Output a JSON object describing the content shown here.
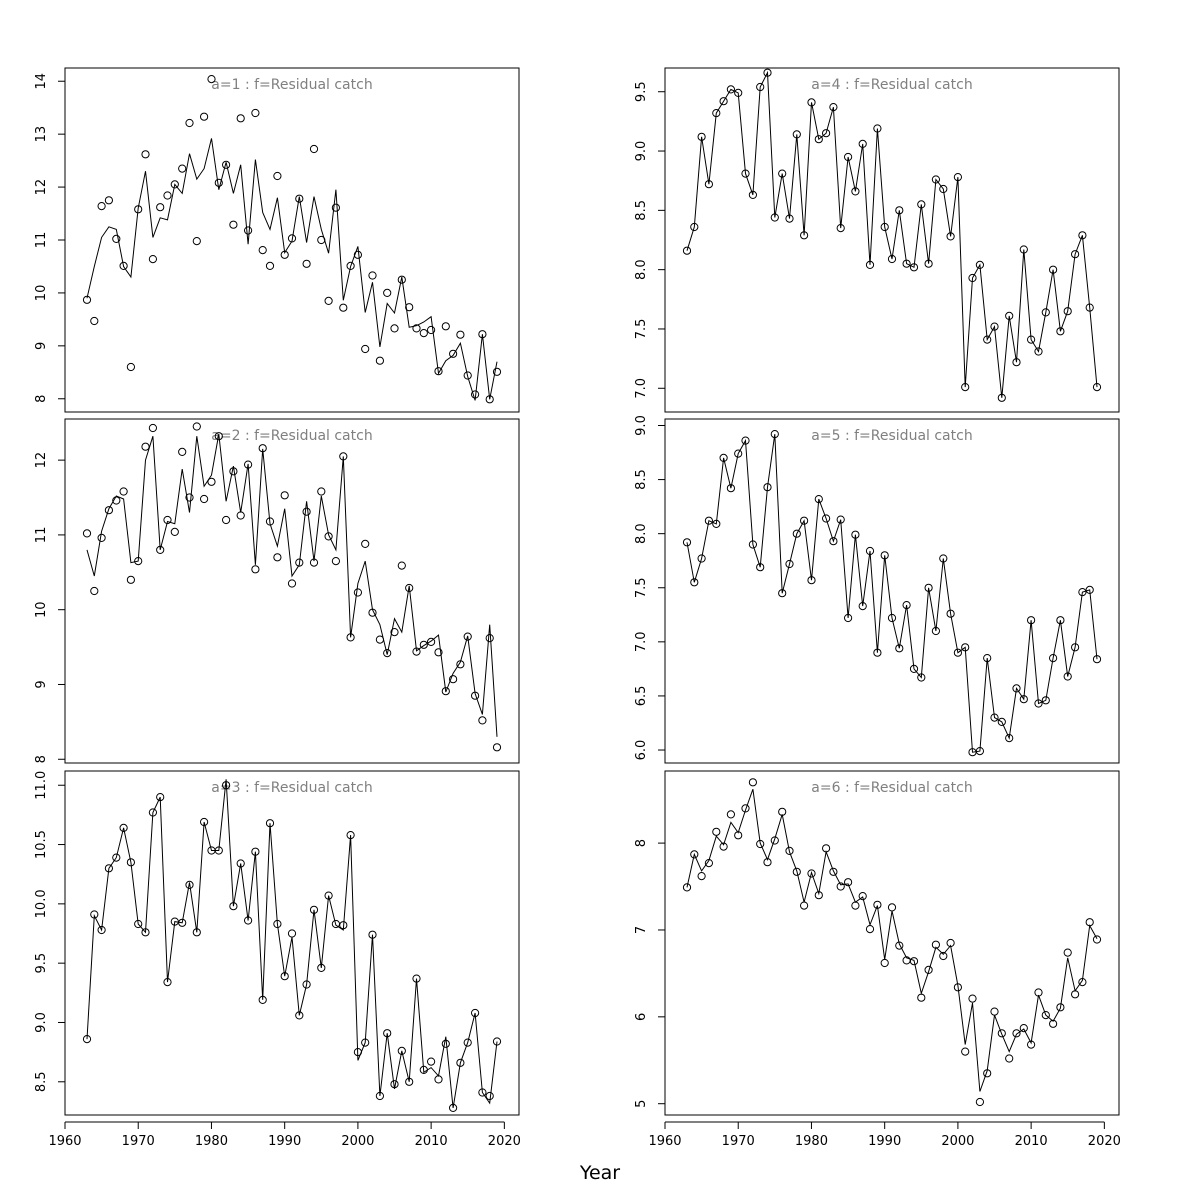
{
  "figure": {
    "xlabel": "Year",
    "point_style": "open-circle",
    "colors": {
      "line": "#000000",
      "points": "#000000",
      "title": "#808080",
      "frame": "#000000"
    }
  },
  "chart_data": [
    {
      "type": "scatter",
      "title": "a=1  :  f=Residual catch",
      "xlim": [
        1960,
        2022
      ],
      "ylim": [
        7.75,
        14.25
      ],
      "yticks": [
        8,
        9,
        10,
        11,
        12,
        13,
        14
      ],
      "xticks": [],
      "x": [
        1963,
        1964,
        1965,
        1966,
        1967,
        1968,
        1969,
        1970,
        1971,
        1972,
        1973,
        1974,
        1975,
        1976,
        1977,
        1978,
        1979,
        1980,
        1981,
        1982,
        1983,
        1984,
        1985,
        1986,
        1987,
        1988,
        1989,
        1990,
        1991,
        1992,
        1993,
        1994,
        1995,
        1996,
        1997,
        1998,
        1999,
        2000,
        2001,
        2002,
        2003,
        2004,
        2005,
        2006,
        2007,
        2008,
        2009,
        2010,
        2011,
        2012,
        2013,
        2014,
        2015,
        2016,
        2017,
        2018,
        2019
      ],
      "observed": [
        9.87,
        9.47,
        11.64,
        11.75,
        11.02,
        10.51,
        8.6,
        11.58,
        12.62,
        10.64,
        11.62,
        11.84,
        12.05,
        12.35,
        13.21,
        10.98,
        13.33,
        14.04,
        12.08,
        12.42,
        11.29,
        13.3,
        11.18,
        13.4,
        10.81,
        10.51,
        12.21,
        10.72,
        11.03,
        11.78,
        10.55,
        12.72,
        11.0,
        9.85,
        11.61,
        9.72,
        10.51,
        10.72,
        8.94,
        10.33,
        8.72,
        10.0,
        9.33,
        10.25,
        9.73,
        9.33,
        9.24,
        9.3,
        8.52,
        9.37,
        8.85,
        9.21,
        8.44,
        8.08,
        9.22,
        7.99,
        8.51
      ],
      "fitted": [
        9.9,
        10.5,
        11.05,
        11.25,
        11.2,
        10.5,
        10.3,
        11.6,
        12.3,
        11.05,
        11.42,
        11.38,
        12.05,
        11.88,
        12.63,
        12.15,
        12.35,
        12.92,
        11.95,
        12.47,
        11.88,
        12.42,
        10.92,
        12.52,
        11.52,
        11.2,
        11.8,
        10.76,
        10.98,
        11.82,
        10.95,
        11.82,
        11.2,
        10.75,
        11.95,
        9.86,
        10.5,
        10.88,
        9.63,
        10.2,
        8.98,
        9.8,
        9.62,
        10.3,
        9.35,
        9.38,
        9.45,
        9.55,
        8.48,
        8.72,
        8.82,
        9.05,
        8.42,
        7.97,
        9.22,
        7.99,
        8.7
      ]
    },
    {
      "type": "scatter",
      "title": "a=4  :  f=Residual catch",
      "xlim": [
        1960,
        2022
      ],
      "ylim": [
        6.8,
        9.7
      ],
      "yticks": [
        7.0,
        7.5,
        8.0,
        8.5,
        9.0,
        9.5
      ],
      "xticks": [],
      "x": [
        1963,
        1964,
        1965,
        1966,
        1967,
        1968,
        1969,
        1970,
        1971,
        1972,
        1973,
        1974,
        1975,
        1976,
        1977,
        1978,
        1979,
        1980,
        1981,
        1982,
        1983,
        1984,
        1985,
        1986,
        1987,
        1988,
        1989,
        1990,
        1991,
        1992,
        1993,
        1994,
        1995,
        1996,
        1997,
        1998,
        1999,
        2000,
        2001,
        2002,
        2003,
        2004,
        2005,
        2006,
        2007,
        2008,
        2009,
        2010,
        2011,
        2012,
        2013,
        2014,
        2015,
        2016,
        2017,
        2018,
        2019
      ],
      "observed": [
        8.16,
        8.36,
        9.12,
        8.72,
        9.32,
        9.42,
        9.52,
        9.49,
        8.81,
        8.63,
        9.54,
        9.66,
        8.44,
        8.81,
        8.43,
        9.14,
        8.29,
        9.41,
        9.1,
        9.15,
        9.37,
        8.35,
        8.95,
        8.66,
        9.06,
        8.04,
        9.19,
        8.36,
        8.09,
        8.5,
        8.05,
        8.02,
        8.55,
        8.05,
        8.76,
        8.68,
        8.28,
        8.78,
        7.01,
        7.93,
        8.04,
        7.41,
        7.52,
        6.92,
        7.61,
        7.22,
        8.17,
        7.41,
        7.31,
        7.64,
        8.0,
        7.48,
        7.65,
        8.13,
        8.29,
        7.68,
        7.01
      ],
      "fitted": [
        8.16,
        8.36,
        9.12,
        8.72,
        9.32,
        9.42,
        9.52,
        9.49,
        8.81,
        8.63,
        9.54,
        9.66,
        8.44,
        8.81,
        8.43,
        9.14,
        8.29,
        9.41,
        9.1,
        9.15,
        9.37,
        8.35,
        8.95,
        8.66,
        9.06,
        8.04,
        9.19,
        8.36,
        8.09,
        8.5,
        8.05,
        8.02,
        8.55,
        8.05,
        8.76,
        8.68,
        8.28,
        8.78,
        7.01,
        7.93,
        8.04,
        7.41,
        7.52,
        6.92,
        7.61,
        7.22,
        8.17,
        7.41,
        7.31,
        7.64,
        8.0,
        7.48,
        7.65,
        8.13,
        8.29,
        7.68,
        7.01
      ]
    },
    {
      "type": "scatter",
      "title": "a=2  :  f=Residual catch",
      "xlim": [
        1960,
        2022
      ],
      "ylim": [
        7.95,
        12.55
      ],
      "yticks": [
        8,
        9,
        10,
        11,
        12
      ],
      "xticks": [],
      "x": [
        1963,
        1964,
        1965,
        1966,
        1967,
        1968,
        1969,
        1970,
        1971,
        1972,
        1973,
        1974,
        1975,
        1976,
        1977,
        1978,
        1979,
        1980,
        1981,
        1982,
        1983,
        1984,
        1985,
        1986,
        1987,
        1988,
        1989,
        1990,
        1991,
        1992,
        1993,
        1994,
        1995,
        1996,
        1997,
        1998,
        1999,
        2000,
        2001,
        2002,
        2003,
        2004,
        2005,
        2006,
        2007,
        2008,
        2009,
        2010,
        2011,
        2012,
        2013,
        2014,
        2015,
        2016,
        2017,
        2018,
        2019
      ],
      "observed": [
        11.02,
        10.25,
        10.96,
        11.33,
        11.46,
        11.58,
        10.4,
        10.65,
        12.18,
        12.43,
        10.8,
        11.2,
        11.04,
        12.11,
        11.5,
        12.45,
        11.48,
        11.71,
        12.32,
        11.2,
        11.85,
        11.26,
        11.94,
        10.54,
        12.16,
        11.18,
        10.7,
        11.53,
        10.35,
        10.63,
        11.31,
        10.63,
        11.58,
        10.98,
        10.65,
        12.05,
        9.63,
        10.23,
        10.88,
        9.96,
        9.6,
        9.42,
        9.7,
        10.59,
        10.29,
        9.44,
        9.53,
        9.57,
        9.43,
        8.91,
        9.07,
        9.27,
        9.64,
        8.85,
        8.52,
        9.62,
        8.16
      ],
      "fitted": [
        10.8,
        10.45,
        11.05,
        11.35,
        11.52,
        11.48,
        10.63,
        10.65,
        12.0,
        12.32,
        10.8,
        11.18,
        11.15,
        11.88,
        11.3,
        12.32,
        11.65,
        11.8,
        12.35,
        11.45,
        11.92,
        11.3,
        11.95,
        10.6,
        12.15,
        11.15,
        10.85,
        11.35,
        10.45,
        10.6,
        11.45,
        10.65,
        11.52,
        11.0,
        10.8,
        12.05,
        9.63,
        10.35,
        10.65,
        10.0,
        9.8,
        9.4,
        9.88,
        9.7,
        10.32,
        9.45,
        9.52,
        9.58,
        9.66,
        8.9,
        9.15,
        9.3,
        9.65,
        8.88,
        8.6,
        9.8,
        8.3
      ]
    },
    {
      "type": "scatter",
      "title": "a=5  :  f=Residual catch",
      "xlim": [
        1960,
        2022
      ],
      "ylim": [
        5.88,
        9.06
      ],
      "yticks": [
        6.0,
        6.5,
        7.0,
        7.5,
        8.0,
        8.5,
        9.0
      ],
      "xticks": [],
      "x": [
        1963,
        1964,
        1965,
        1966,
        1967,
        1968,
        1969,
        1970,
        1971,
        1972,
        1973,
        1974,
        1975,
        1976,
        1977,
        1978,
        1979,
        1980,
        1981,
        1982,
        1983,
        1984,
        1985,
        1986,
        1987,
        1988,
        1989,
        1990,
        1991,
        1992,
        1993,
        1994,
        1995,
        1996,
        1997,
        1998,
        1999,
        2000,
        2001,
        2002,
        2003,
        2004,
        2005,
        2006,
        2007,
        2008,
        2009,
        2010,
        2011,
        2012,
        2013,
        2014,
        2015,
        2016,
        2017,
        2018,
        2019
      ],
      "observed": [
        7.92,
        7.55,
        7.77,
        8.12,
        8.09,
        8.7,
        8.42,
        8.74,
        8.86,
        7.9,
        7.69,
        8.43,
        8.92,
        7.45,
        7.72,
        8.0,
        8.12,
        7.57,
        8.32,
        8.14,
        7.93,
        8.13,
        7.22,
        7.99,
        7.33,
        7.84,
        6.9,
        7.8,
        7.22,
        6.94,
        7.34,
        6.75,
        6.67,
        7.5,
        7.1,
        7.77,
        7.26,
        6.9,
        6.95,
        5.98,
        5.99,
        6.85,
        6.3,
        6.26,
        6.11,
        6.57,
        6.47,
        7.2,
        6.43,
        6.46,
        6.85,
        7.2,
        6.68,
        6.95,
        7.46,
        7.48,
        6.84
      ],
      "fitted": [
        7.92,
        7.55,
        7.77,
        8.12,
        8.09,
        8.7,
        8.42,
        8.74,
        8.86,
        7.9,
        7.69,
        8.43,
        8.92,
        7.45,
        7.72,
        8.0,
        8.12,
        7.57,
        8.32,
        8.14,
        7.93,
        8.13,
        7.22,
        7.99,
        7.33,
        7.84,
        6.9,
        7.8,
        7.22,
        6.94,
        7.34,
        6.75,
        6.67,
        7.5,
        7.1,
        7.77,
        7.26,
        6.9,
        6.95,
        5.98,
        5.99,
        6.85,
        6.3,
        6.26,
        6.11,
        6.57,
        6.47,
        7.2,
        6.43,
        6.46,
        6.85,
        7.2,
        6.68,
        6.95,
        7.46,
        7.48,
        6.84
      ]
    },
    {
      "type": "scatter",
      "title": "a=3  :  f=Residual catch",
      "xlim": [
        1960,
        2022
      ],
      "ylim": [
        8.22,
        11.12
      ],
      "yticks": [
        8.5,
        9.0,
        9.5,
        10.0,
        10.5,
        11.0
      ],
      "xticks": [
        1960,
        1970,
        1980,
        1990,
        2000,
        2010,
        2020
      ],
      "x": [
        1963,
        1964,
        1965,
        1966,
        1967,
        1968,
        1969,
        1970,
        1971,
        1972,
        1973,
        1974,
        1975,
        1976,
        1977,
        1978,
        1979,
        1980,
        1981,
        1982,
        1983,
        1984,
        1985,
        1986,
        1987,
        1988,
        1989,
        1990,
        1991,
        1992,
        1993,
        1994,
        1995,
        1996,
        1997,
        1998,
        1999,
        2000,
        2001,
        2002,
        2003,
        2004,
        2005,
        2006,
        2007,
        2008,
        2009,
        2010,
        2011,
        2012,
        2013,
        2014,
        2015,
        2016,
        2017,
        2018,
        2019
      ],
      "observed": [
        8.86,
        9.91,
        9.78,
        10.3,
        10.39,
        10.64,
        10.35,
        9.83,
        9.76,
        10.77,
        10.9,
        9.34,
        9.85,
        9.84,
        10.16,
        9.76,
        10.69,
        10.45,
        10.45,
        11.0,
        9.98,
        10.34,
        9.86,
        10.44,
        9.19,
        10.68,
        9.83,
        9.39,
        9.75,
        9.06,
        9.32,
        9.95,
        9.46,
        10.07,
        9.83,
        9.82,
        10.58,
        8.75,
        8.83,
        9.74,
        8.38,
        8.91,
        8.48,
        8.76,
        8.5,
        9.37,
        8.6,
        8.67,
        8.52,
        8.82,
        8.28,
        8.66,
        8.83,
        9.08,
        8.41,
        8.38,
        8.84
      ],
      "fitted": [
        8.86,
        9.9,
        9.78,
        10.3,
        10.39,
        10.64,
        10.35,
        9.83,
        9.76,
        10.77,
        10.9,
        9.34,
        9.85,
        9.84,
        10.18,
        9.76,
        10.69,
        10.45,
        10.45,
        11.05,
        9.98,
        10.34,
        9.86,
        10.44,
        9.19,
        10.68,
        9.83,
        9.39,
        9.72,
        9.06,
        9.32,
        9.95,
        9.46,
        10.07,
        9.82,
        9.78,
        10.58,
        8.68,
        8.83,
        9.74,
        8.38,
        8.91,
        8.44,
        8.76,
        8.5,
        9.37,
        8.58,
        8.62,
        8.55,
        8.88,
        8.28,
        8.66,
        8.83,
        9.08,
        8.41,
        8.32,
        8.84
      ]
    },
    {
      "type": "scatter",
      "title": "a=6  :  f=Residual catch",
      "xlim": [
        1960,
        2022
      ],
      "ylim": [
        4.87,
        8.83
      ],
      "yticks": [
        5,
        6,
        7,
        8
      ],
      "xticks": [
        1960,
        1970,
        1980,
        1990,
        2000,
        2010,
        2020
      ],
      "x": [
        1963,
        1964,
        1965,
        1966,
        1967,
        1968,
        1969,
        1970,
        1971,
        1972,
        1973,
        1974,
        1975,
        1976,
        1977,
        1978,
        1979,
        1980,
        1981,
        1982,
        1983,
        1984,
        1985,
        1986,
        1987,
        1988,
        1989,
        1990,
        1991,
        1992,
        1993,
        1994,
        1995,
        1996,
        1997,
        1998,
        1999,
        2000,
        2001,
        2002,
        2003,
        2004,
        2005,
        2006,
        2007,
        2008,
        2009,
        2010,
        2011,
        2012,
        2013,
        2014,
        2015,
        2016,
        2017,
        2018,
        2019
      ],
      "observed": [
        7.49,
        7.87,
        7.62,
        7.77,
        8.13,
        7.96,
        8.33,
        8.09,
        8.4,
        8.7,
        7.99,
        7.78,
        8.03,
        8.36,
        7.91,
        7.67,
        7.28,
        7.65,
        7.4,
        7.94,
        7.67,
        7.5,
        7.55,
        7.28,
        7.39,
        7.01,
        7.29,
        6.62,
        7.26,
        6.82,
        6.65,
        6.64,
        6.22,
        6.54,
        6.83,
        6.7,
        6.85,
        6.34,
        5.6,
        6.21,
        5.02,
        5.35,
        6.06,
        5.81,
        5.52,
        5.81,
        5.87,
        5.68,
        6.28,
        6.02,
        5.92,
        6.11,
        6.74,
        6.26,
        6.4,
        7.09,
        6.89
      ],
      "fitted": [
        7.49,
        7.87,
        7.68,
        7.8,
        8.08,
        7.98,
        8.24,
        8.12,
        8.38,
        8.62,
        8.0,
        7.81,
        8.05,
        8.33,
        7.9,
        7.68,
        7.32,
        7.66,
        7.42,
        7.9,
        7.68,
        7.52,
        7.53,
        7.32,
        7.38,
        7.06,
        7.28,
        6.66,
        7.22,
        6.84,
        6.68,
        6.65,
        6.27,
        6.52,
        6.8,
        6.72,
        6.82,
        6.36,
        5.68,
        6.16,
        5.14,
        5.38,
        6.02,
        5.8,
        5.6,
        5.8,
        5.86,
        5.7,
        6.25,
        6.02,
        5.95,
        6.1,
        6.68,
        6.3,
        6.42,
        7.05,
        6.9
      ]
    }
  ]
}
